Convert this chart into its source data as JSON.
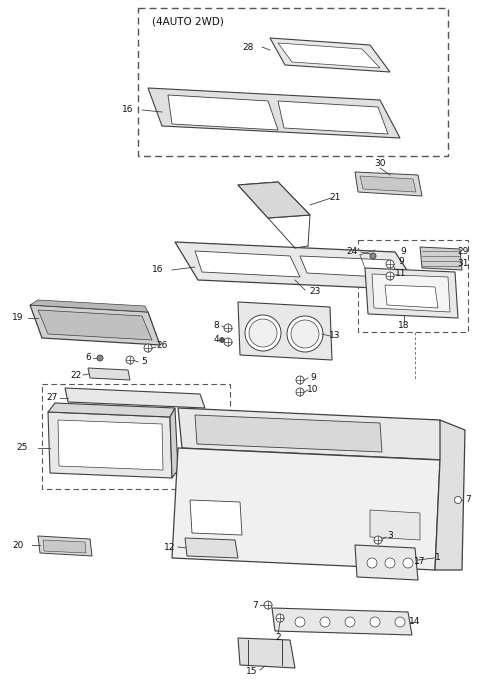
{
  "bg_color": "#ffffff",
  "line_color": "#404040",
  "label_color": "#111111",
  "font_size": 6.5,
  "figsize": [
    4.8,
    6.83
  ],
  "dpi": 100
}
